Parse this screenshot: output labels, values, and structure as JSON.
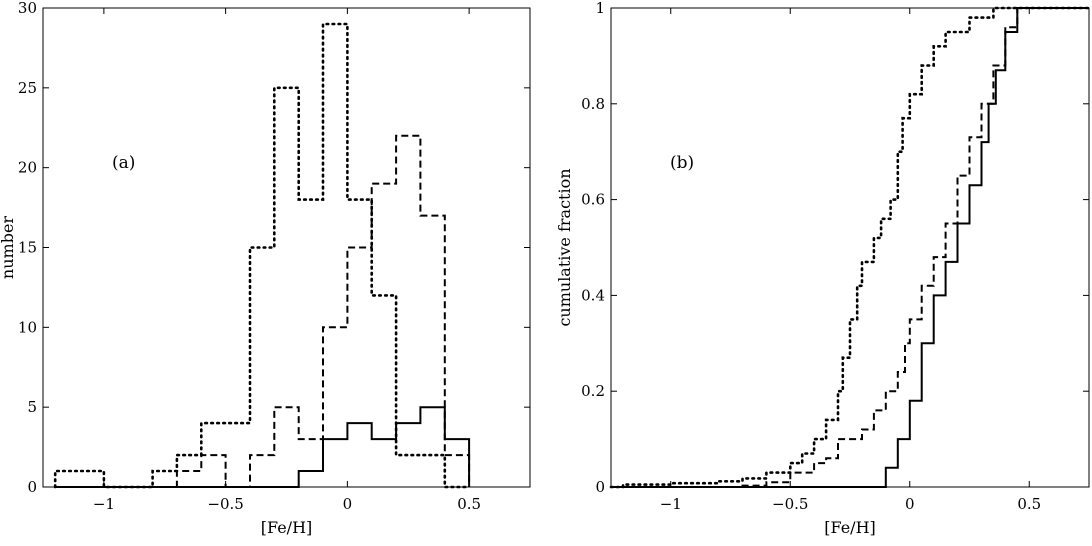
{
  "chart_data": [
    {
      "type": "histogram",
      "panel_label": "(a)",
      "xlabel": "[Fe/H]",
      "ylabel": "number",
      "xlim": [
        -1.25,
        0.75
      ],
      "ylim": [
        0,
        30
      ],
      "x_ticks": [
        -1,
        -0.5,
        0,
        0.5
      ],
      "x_tick_labels": [
        "−1",
        "−0.5",
        "0",
        "0.5"
      ],
      "y_ticks": [
        0,
        5,
        10,
        15,
        20,
        25,
        30
      ],
      "y_tick_labels": [
        "0",
        "5",
        "10",
        "15",
        "20",
        "25",
        "30"
      ],
      "bin_edges": [
        -1.2,
        -1.1,
        -1.0,
        -0.9,
        -0.8,
        -0.7,
        -0.6,
        -0.5,
        -0.4,
        -0.3,
        -0.2,
        -0.1,
        0.0,
        0.1,
        0.2,
        0.3,
        0.4,
        0.5
      ],
      "grid": false,
      "series": [
        {
          "style": "dotted",
          "values": [
            1,
            1,
            0,
            0,
            1,
            2,
            4,
            4,
            15,
            25,
            18,
            29,
            18,
            12,
            2,
            2,
            0
          ]
        },
        {
          "style": "dashed",
          "values": [
            0,
            0,
            0,
            0,
            0,
            1,
            2,
            0,
            2,
            5,
            3,
            10,
            15,
            19,
            22,
            17,
            2
          ]
        },
        {
          "style": "solid",
          "values": [
            0,
            0,
            0,
            0,
            0,
            0,
            0,
            0,
            0,
            0,
            1,
            3,
            4,
            3,
            4,
            5,
            3
          ]
        }
      ]
    },
    {
      "type": "cumulative",
      "panel_label": "(b)",
      "xlabel": "[Fe/H]",
      "ylabel": "cumulative fraction",
      "xlim": [
        -1.25,
        0.75
      ],
      "ylim": [
        0,
        1
      ],
      "x_ticks": [
        -1,
        -0.5,
        0,
        0.5
      ],
      "x_tick_labels": [
        "−1",
        "−0.5",
        "0",
        "0.5"
      ],
      "y_ticks": [
        0,
        0.2,
        0.4,
        0.6,
        0.8,
        1
      ],
      "y_tick_labels": [
        "0",
        "0.2",
        "0.4",
        "0.6",
        "0.8",
        "1"
      ],
      "grid": false,
      "series": [
        {
          "style": "dotted",
          "points": [
            [
              -1.25,
              0
            ],
            [
              -1.2,
              0.005
            ],
            [
              -1.0,
              0.008
            ],
            [
              -0.8,
              0.012
            ],
            [
              -0.7,
              0.018
            ],
            [
              -0.6,
              0.03
            ],
            [
              -0.5,
              0.05
            ],
            [
              -0.45,
              0.07
            ],
            [
              -0.4,
              0.1
            ],
            [
              -0.35,
              0.14
            ],
            [
              -0.3,
              0.2
            ],
            [
              -0.28,
              0.27
            ],
            [
              -0.25,
              0.35
            ],
            [
              -0.22,
              0.42
            ],
            [
              -0.2,
              0.47
            ],
            [
              -0.15,
              0.52
            ],
            [
              -0.12,
              0.56
            ],
            [
              -0.08,
              0.6
            ],
            [
              -0.05,
              0.7
            ],
            [
              -0.03,
              0.77
            ],
            [
              0.0,
              0.82
            ],
            [
              0.05,
              0.88
            ],
            [
              0.1,
              0.92
            ],
            [
              0.15,
              0.95
            ],
            [
              0.25,
              0.98
            ],
            [
              0.35,
              1.0
            ],
            [
              0.75,
              1.0
            ]
          ]
        },
        {
          "style": "dashed",
          "points": [
            [
              -1.25,
              0
            ],
            [
              -0.7,
              0.003
            ],
            [
              -0.6,
              0.01
            ],
            [
              -0.5,
              0.03
            ],
            [
              -0.4,
              0.05
            ],
            [
              -0.35,
              0.06
            ],
            [
              -0.3,
              0.1
            ],
            [
              -0.2,
              0.12
            ],
            [
              -0.15,
              0.16
            ],
            [
              -0.1,
              0.2
            ],
            [
              -0.05,
              0.24
            ],
            [
              -0.02,
              0.3
            ],
            [
              0.0,
              0.35
            ],
            [
              0.05,
              0.42
            ],
            [
              0.1,
              0.48
            ],
            [
              0.15,
              0.55
            ],
            [
              0.2,
              0.65
            ],
            [
              0.25,
              0.73
            ],
            [
              0.3,
              0.8
            ],
            [
              0.35,
              0.88
            ],
            [
              0.4,
              0.96
            ],
            [
              0.45,
              1.0
            ],
            [
              0.75,
              1.0
            ]
          ]
        },
        {
          "style": "solid",
          "points": [
            [
              -1.25,
              0
            ],
            [
              -0.1,
              0
            ],
            [
              -0.1,
              0.04
            ],
            [
              -0.05,
              0.1
            ],
            [
              0.0,
              0.18
            ],
            [
              0.05,
              0.3
            ],
            [
              0.1,
              0.4
            ],
            [
              0.15,
              0.47
            ],
            [
              0.2,
              0.55
            ],
            [
              0.25,
              0.63
            ],
            [
              0.3,
              0.72
            ],
            [
              0.33,
              0.8
            ],
            [
              0.36,
              0.87
            ],
            [
              0.4,
              0.95
            ],
            [
              0.45,
              1.0
            ],
            [
              0.75,
              1.0
            ]
          ]
        }
      ]
    }
  ]
}
